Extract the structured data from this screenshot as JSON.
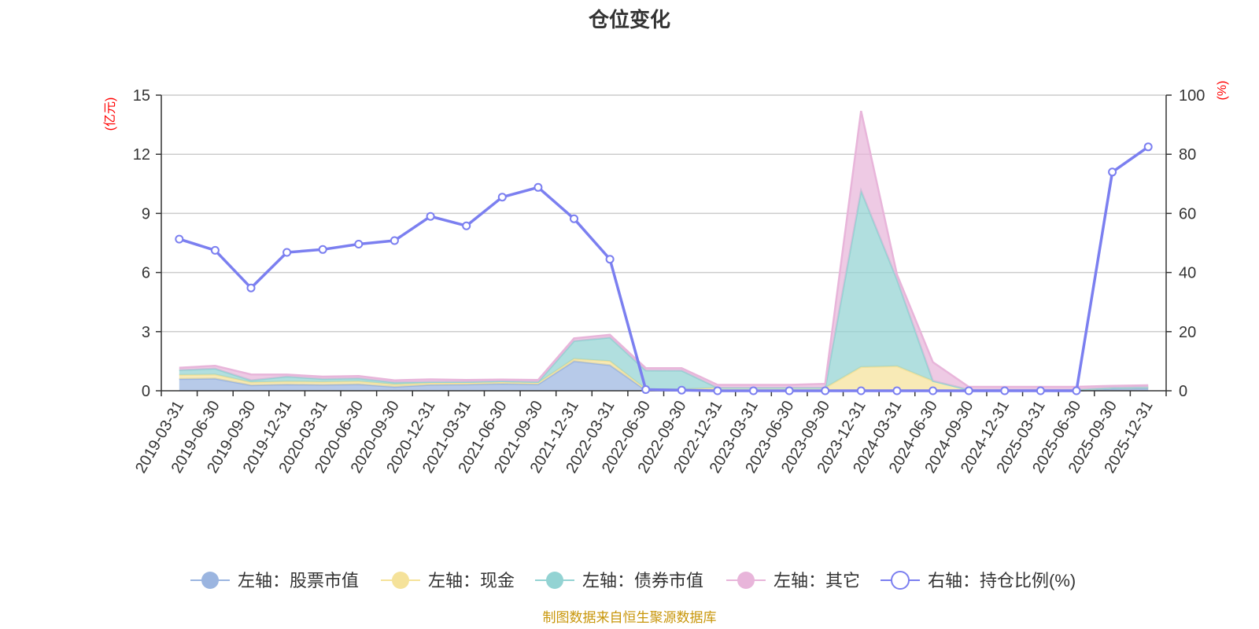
{
  "chart_data": {
    "type": "area",
    "title": "仓位变化",
    "left_axis": {
      "unit": "(亿元)",
      "ylim": [
        0,
        15
      ],
      "ticks": [
        0,
        3,
        6,
        9,
        12,
        15
      ]
    },
    "right_axis": {
      "unit": "(%)",
      "ylim": [
        0,
        100
      ],
      "ticks": [
        0,
        20,
        40,
        60,
        80,
        100
      ]
    },
    "categories": [
      "2019-03-31",
      "2019-06-30",
      "2019-09-30",
      "2019-12-31",
      "2020-03-31",
      "2020-06-30",
      "2020-09-30",
      "2020-12-31",
      "2021-03-31",
      "2021-06-30",
      "2021-09-30",
      "2021-12-31",
      "2022-03-31",
      "2022-06-30",
      "2022-09-30",
      "2022-12-31",
      "2023-03-31",
      "2023-06-30",
      "2023-09-30",
      "2023-12-31",
      "2024-03-31",
      "2024-06-30",
      "2024-09-30",
      "2024-12-31",
      "2025-03-31",
      "2025-06-30",
      "2025-09-30",
      "2025-12-31"
    ],
    "series": [
      {
        "name": "左轴：股票市值",
        "axis": "left",
        "type": "stacked-area",
        "color": "#9bb5e0",
        "values": [
          0.6,
          0.62,
          0.28,
          0.32,
          0.3,
          0.33,
          0.2,
          0.3,
          0.32,
          0.36,
          0.33,
          1.5,
          1.3,
          0.03,
          0.02,
          0.0,
          0.0,
          0.0,
          0.0,
          0.0,
          0.0,
          0.0,
          0.0,
          0.0,
          0.0,
          0.0,
          0.1,
          0.12
        ]
      },
      {
        "name": "左轴：现金",
        "axis": "left",
        "type": "stacked-area",
        "color": "#f5e29a",
        "values": [
          0.2,
          0.2,
          0.15,
          0.15,
          0.15,
          0.15,
          0.12,
          0.1,
          0.08,
          0.08,
          0.07,
          0.12,
          0.2,
          0.05,
          0.05,
          0.15,
          0.15,
          0.15,
          0.15,
          1.2,
          1.25,
          0.5,
          0.05,
          0.05,
          0.05,
          0.05,
          0.05,
          0.06
        ]
      },
      {
        "name": "左轴：债券市值",
        "axis": "left",
        "type": "stacked-area",
        "color": "#93d3d3",
        "values": [
          0.25,
          0.3,
          0.1,
          0.25,
          0.15,
          0.15,
          0.1,
          0.05,
          0.05,
          0.05,
          0.05,
          0.9,
          1.2,
          0.95,
          0.95,
          0.0,
          0.0,
          0.0,
          0.0,
          8.95,
          4.4,
          0.0,
          0.0,
          0.0,
          0.0,
          0.0,
          0.0,
          0.0
        ]
      },
      {
        "name": "左轴：其它",
        "axis": "left",
        "type": "stacked-area",
        "color": "#e8b5da",
        "values": [
          0.12,
          0.15,
          0.3,
          0.1,
          0.12,
          0.12,
          0.11,
          0.13,
          0.1,
          0.08,
          0.1,
          0.14,
          0.14,
          0.12,
          0.13,
          0.15,
          0.15,
          0.15,
          0.2,
          4.05,
          0.25,
          0.95,
          0.15,
          0.15,
          0.15,
          0.15,
          0.1,
          0.1
        ]
      },
      {
        "name": "右轴：持仓比例(%)",
        "axis": "right",
        "type": "line",
        "color": "#7b7ff0",
        "values": [
          51.3,
          47.5,
          34.8,
          46.8,
          47.8,
          49.6,
          50.8,
          59.0,
          55.8,
          65.5,
          68.8,
          58.2,
          44.5,
          0.4,
          0.2,
          0.0,
          0.0,
          0.0,
          0.0,
          0.0,
          0.0,
          0.0,
          0.0,
          0.0,
          0.0,
          0.0,
          74.0,
          82.5
        ]
      }
    ],
    "legend_position": "bottom"
  },
  "source": "制图数据来自恒生聚源数据库"
}
